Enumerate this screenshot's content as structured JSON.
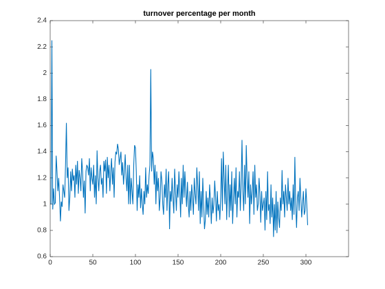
{
  "chart_data": {
    "type": "line",
    "title": "turnover percentage per month",
    "color": "#0072bd",
    "xlim": [
      0,
      350
    ],
    "xticks": [
      0,
      50,
      100,
      150,
      200,
      250,
      300
    ],
    "ylim": [
      0.6,
      2.4
    ],
    "yticks": [
      0.6,
      0.8,
      1,
      1.2,
      1.4,
      1.6,
      1.8,
      2,
      2.2,
      2.4
    ],
    "x": [
      1,
      2,
      3,
      4,
      5,
      6,
      7,
      8,
      9,
      10,
      11,
      12,
      13,
      14,
      15,
      16,
      17,
      18,
      19,
      20,
      21,
      22,
      23,
      24,
      25,
      26,
      27,
      28,
      29,
      30,
      31,
      32,
      33,
      34,
      35,
      36,
      37,
      38,
      39,
      40,
      41,
      42,
      43,
      44,
      45,
      46,
      47,
      48,
      49,
      50,
      51,
      52,
      53,
      54,
      55,
      56,
      57,
      58,
      59,
      60,
      61,
      62,
      63,
      64,
      65,
      66,
      67,
      68,
      69,
      70,
      71,
      72,
      73,
      74,
      75,
      76,
      77,
      78,
      79,
      80,
      81,
      82,
      83,
      84,
      85,
      86,
      87,
      88,
      89,
      90,
      91,
      92,
      93,
      94,
      95,
      96,
      97,
      98,
      99,
      100,
      101,
      102,
      103,
      104,
      105,
      106,
      107,
      108,
      109,
      110,
      111,
      112,
      113,
      114,
      115,
      116,
      117,
      118,
      119,
      120,
      121,
      122,
      123,
      124,
      125,
      126,
      127,
      128,
      129,
      130,
      131,
      132,
      133,
      134,
      135,
      136,
      137,
      138,
      139,
      140,
      141,
      142,
      143,
      144,
      145,
      146,
      147,
      148,
      149,
      150,
      151,
      152,
      153,
      154,
      155,
      156,
      157,
      158,
      159,
      160,
      161,
      162,
      163,
      164,
      165,
      166,
      167,
      168,
      169,
      170,
      171,
      172,
      173,
      174,
      175,
      176,
      177,
      178,
      179,
      180,
      181,
      182,
      183,
      184,
      185,
      186,
      187,
      188,
      189,
      190,
      191,
      192,
      193,
      194,
      195,
      196,
      197,
      198,
      199,
      200,
      201,
      202,
      203,
      204,
      205,
      206,
      207,
      208,
      209,
      210,
      211,
      212,
      213,
      214,
      215,
      216,
      217,
      218,
      219,
      220,
      221,
      222,
      223,
      224,
      225,
      226,
      227,
      228,
      229,
      230,
      231,
      232,
      233,
      234,
      235,
      236,
      237,
      238,
      239,
      240,
      241,
      242,
      243,
      244,
      245,
      246,
      247,
      248,
      249,
      250,
      251,
      252,
      253,
      254,
      255,
      256,
      257,
      258,
      259,
      260,
      261,
      262,
      263,
      264,
      265,
      266,
      267,
      268,
      269,
      270,
      271,
      272,
      273,
      274,
      275,
      276,
      277,
      278,
      279,
      280,
      281,
      282,
      283,
      284,
      285,
      286,
      287,
      288,
      289,
      290,
      291,
      292,
      293,
      294,
      295,
      296,
      297,
      298,
      299,
      300,
      301,
      302
    ],
    "values": [
      1.0,
      2.25,
      0.96,
      1.12,
      1.0,
      1.01,
      1.37,
      1.25,
      1.1,
      1.2,
      1.05,
      0.87,
      1.02,
      0.98,
      1.15,
      1.1,
      1.05,
      1.3,
      1.62,
      1.2,
      1.28,
      0.95,
      1.05,
      1.25,
      1.1,
      1.27,
      1.18,
      1.22,
      1.05,
      1.3,
      1.15,
      1.33,
      1.08,
      1.26,
      1.2,
      1.1,
      1.35,
      1.25,
      1.05,
      1.18,
      0.93,
      1.25,
      1.3,
      1.28,
      1.22,
      1.35,
      1.1,
      1.28,
      1.2,
      1.15,
      1.3,
      1.05,
      1.22,
      1.0,
      1.41,
      1.2,
      1.1,
      1.25,
      1.3,
      1.15,
      1.2,
      1.05,
      1.33,
      1.25,
      1.34,
      1.08,
      1.36,
      1.2,
      1.3,
      1.1,
      1.25,
      1.35,
      1.15,
      1.28,
      1.05,
      1.32,
      1.4,
      1.38,
      1.46,
      1.42,
      1.3,
      1.35,
      1.4,
      1.22,
      1.32,
      1.15,
      1.25,
      1.38,
      1.2,
      1.1,
      1.3,
      1.0,
      1.3,
      1.0,
      1.2,
      1.1,
      1.0,
      1.3,
      1.45,
      1.43,
      1.25,
      0.95,
      1.15,
      1.05,
      1.22,
      0.97,
      1.12,
      1.0,
      0.92,
      1.1,
      1.0,
      1.28,
      1.05,
      1.15,
      1.08,
      1.22,
      1.3,
      2.03,
      1.25,
      1.4,
      1.35,
      1.15,
      1.3,
      1.0,
      1.25,
      1.1,
      1.2,
      0.95,
      1.05,
      1.25,
      1.18,
      1.0,
      0.92,
      1.15,
      1.05,
      1.27,
      0.95,
      1.15,
      1.25,
      0.81,
      1.1,
      1.02,
      1.2,
      1.05,
      0.93,
      1.27,
      1.1,
      0.95,
      1.15,
      1.05,
      1.25,
      1.1,
      0.9,
      1.2,
      1.0,
      1.3,
      1.05,
      1.25,
      1.1,
      0.98,
      1.17,
      1.0,
      0.9,
      1.1,
      0.95,
      1.15,
      1.05,
      0.92,
      1.2,
      1.08,
      1.0,
      1.28,
      1.15,
      0.95,
      1.25,
      0.85,
      1.1,
      0.9,
      1.2,
      1.0,
      0.81,
      0.88,
      1.1,
      0.92,
      1.05,
      0.9,
      1.15,
      1.03,
      0.85,
      1.05,
      0.93,
      1.0,
      1.18,
      1.05,
      0.87,
      1.1,
      0.95,
      1.0,
      0.88,
      1.05,
      1.35,
      0.95,
      1.4,
      1.2,
      1.0,
      1.3,
      0.88,
      1.1,
      1.3,
      0.9,
      1.15,
      0.95,
      1.25,
      0.85,
      1.05,
      1.2,
      1.0,
      1.28,
      0.9,
      1.1,
      1.05,
      1.25,
      0.95,
      1.15,
      1.49,
      1.1,
      0.95,
      1.3,
      1.0,
      1.45,
      1.2,
      1.05,
      1.25,
      0.85,
      1.15,
      1.0,
      1.1,
      1.25,
      0.92,
      1.3,
      1.05,
      1.15,
      0.95,
      1.0,
      1.2,
      1.08,
      0.86,
      1.1,
      0.95,
      1.0,
      1.05,
      0.8,
      1.1,
      0.88,
      1.25,
      0.95,
      1.0,
      0.85,
      1.15,
      0.9,
      1.05,
      0.75,
      1.0,
      0.8,
      1.1,
      0.78,
      1.02,
      0.9,
      0.82,
      1.05,
      0.95,
      1.26,
      1.0,
      1.1,
      0.9,
      1.15,
      1.05,
      0.95,
      1.2,
      1.0,
      1.1,
      0.95,
      1.05,
      0.88,
      1.15,
      0.92,
      1.36,
      1.0,
      0.82,
      1.05,
      1.1,
      0.95,
      1.2,
      1.05,
      0.9,
      1.0,
      1.1,
      0.92,
      0.95,
      1.12,
      1.0,
      0.84
    ]
  }
}
